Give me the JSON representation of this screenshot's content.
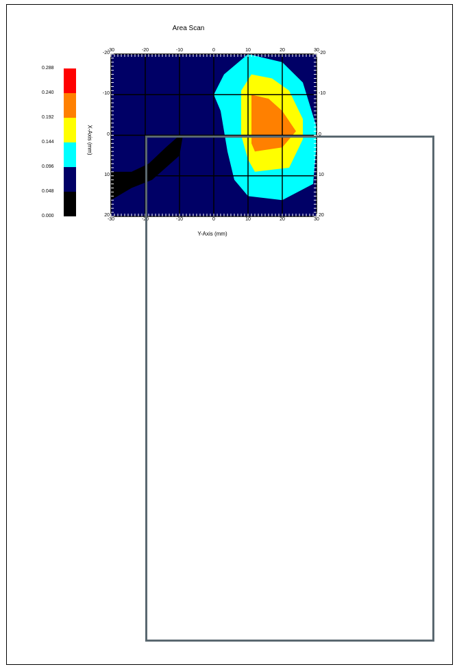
{
  "chart_data": {
    "type": "heatmap",
    "title": "Area Scan",
    "xlabel": "Y-Axis (mm)",
    "ylabel": "X-Axis (mm)",
    "xlim": [
      -30,
      30
    ],
    "ylim": [
      -20,
      20
    ],
    "x_ticks": [
      -30,
      -20,
      -10,
      0,
      10,
      20,
      30
    ],
    "y_ticks": [
      -20,
      -10,
      0,
      10,
      20
    ],
    "legend": {
      "placement": "left",
      "levels": [
        "0.000",
        "0.048",
        "0.096",
        "0.144",
        "0.192",
        "0.240",
        "0.288"
      ],
      "colors": [
        "#000000",
        "#000066",
        "#00ffff",
        "#ffff00",
        "#ff8000",
        "#ff0000"
      ]
    },
    "regions": [
      {
        "level_min": 0.096,
        "level_max": 0.144,
        "color": "#00ffff",
        "outline": [
          [
            10,
            -20
          ],
          [
            20,
            -18
          ],
          [
            26,
            -13
          ],
          [
            30,
            -2
          ],
          [
            30,
            2
          ],
          [
            29,
            12
          ],
          [
            20,
            16
          ],
          [
            10,
            15
          ],
          [
            6,
            11
          ],
          [
            4,
            4
          ],
          [
            2,
            -6
          ],
          [
            0,
            -10
          ],
          [
            3,
            -15
          ]
        ]
      },
      {
        "level_min": 0.144,
        "level_max": 0.192,
        "color": "#ffff00",
        "outline": [
          [
            11,
            -15
          ],
          [
            17,
            -14
          ],
          [
            22,
            -11
          ],
          [
            26,
            -4
          ],
          [
            26,
            1
          ],
          [
            22,
            8
          ],
          [
            12,
            9
          ],
          [
            10,
            6
          ],
          [
            8,
            0
          ],
          [
            8,
            -6
          ],
          [
            8,
            -11
          ]
        ]
      },
      {
        "level_min": 0.192,
        "level_max": 0.24,
        "color": "#ff8000",
        "outline": [
          [
            11,
            -10
          ],
          [
            16,
            -9
          ],
          [
            20,
            -6
          ],
          [
            24,
            -1
          ],
          [
            20,
            3
          ],
          [
            12,
            4
          ],
          [
            11,
            2
          ],
          [
            11,
            -5
          ]
        ]
      },
      {
        "level_min": 0.0,
        "level_max": 0.048,
        "color": "#000000",
        "outline": [
          [
            -30,
            9
          ],
          [
            -28,
            9
          ],
          [
            -24,
            9
          ],
          [
            -19,
            7
          ],
          [
            -14,
            3
          ],
          [
            -10,
            0
          ],
          [
            -9,
            0
          ],
          [
            -10,
            5
          ],
          [
            -18,
            11
          ],
          [
            -24,
            13
          ],
          [
            -30,
            16
          ]
        ]
      }
    ]
  },
  "overlay": {
    "color": "#5a6870"
  }
}
